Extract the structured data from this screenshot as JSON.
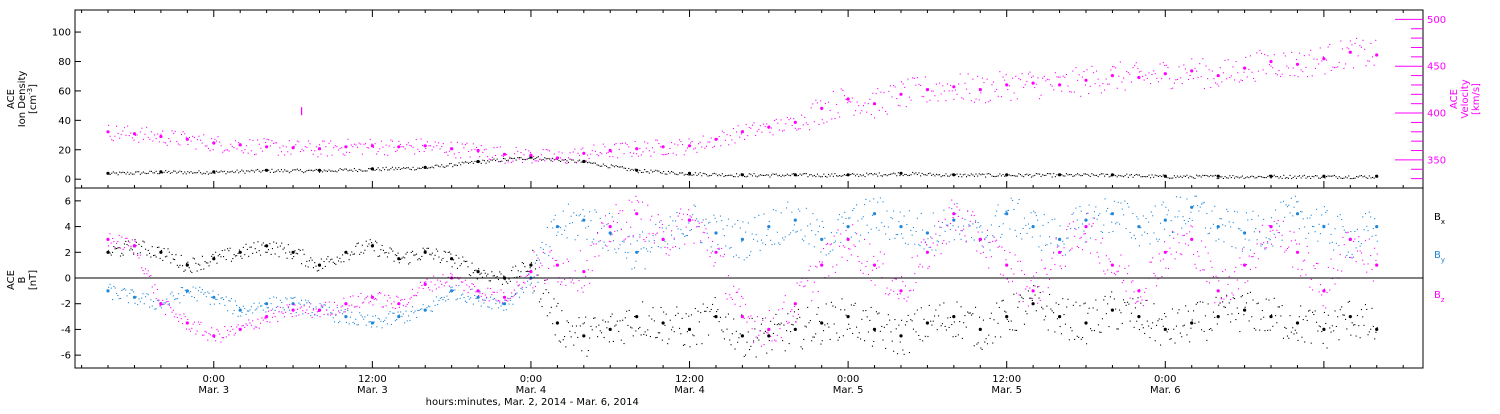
{
  "colors": {
    "black": "#000000",
    "magenta": "#ff00ff",
    "blue": "#1f86d8",
    "axis": "#000000",
    "background": "#ffffff"
  },
  "chart_data": [
    {
      "type": "scatter",
      "panel": "ion-density-velocity",
      "ylabel": [
        "ACE",
        "Ion Density",
        "[cm^-3]"
      ],
      "ylabel_right": [
        "ACE",
        "Velocity",
        "[km/s]"
      ],
      "ylim": [
        -6,
        115
      ],
      "yticks": [
        0,
        20,
        40,
        60,
        80,
        100
      ],
      "ytick_labels": [
        "0",
        "20",
        "40",
        "60",
        "80",
        "100"
      ],
      "ylim_right": [
        320,
        510
      ],
      "yticks_right": [
        350,
        400,
        450,
        500
      ],
      "ytick_labels_right": [
        "350",
        "400",
        "450",
        "500"
      ],
      "series": [
        {
          "axis": "left",
          "color": "black",
          "x": [
            -8,
            -4,
            0,
            4,
            8,
            12,
            16,
            20,
            24,
            28,
            32,
            36,
            40,
            44,
            48,
            52,
            56,
            60,
            64,
            68,
            72,
            76,
            80,
            84,
            88
          ],
          "y": [
            4,
            5,
            5,
            6,
            6,
            7,
            8,
            12,
            15,
            12,
            6,
            4,
            3,
            3,
            3,
            4,
            3,
            3,
            3,
            3,
            2,
            2,
            2,
            2,
            2
          ]
        },
        {
          "axis": "right",
          "color": "magenta",
          "x": [
            -8,
            -6,
            -4,
            -2,
            0,
            2,
            4,
            6,
            8,
            10,
            12,
            14,
            16,
            18,
            20,
            22,
            24,
            26,
            28,
            30,
            32,
            34,
            36,
            38,
            40,
            42,
            44,
            46,
            48,
            50,
            52,
            54,
            56,
            58,
            60,
            62,
            64,
            66,
            68,
            70,
            72,
            74,
            76,
            78,
            80,
            82,
            84,
            86,
            88
          ],
          "y": [
            380,
            378,
            375,
            372,
            368,
            366,
            364,
            363,
            362,
            364,
            365,
            364,
            365,
            362,
            360,
            356,
            355,
            352,
            357,
            360,
            362,
            364,
            365,
            372,
            380,
            385,
            390,
            405,
            415,
            410,
            420,
            425,
            428,
            425,
            430,
            432,
            430,
            435,
            440,
            438,
            442,
            445,
            440,
            448,
            455,
            452,
            458,
            465,
            462
          ]
        }
      ],
      "annotations": [
        {
          "x": 6.6,
          "y": 402,
          "axis": "right",
          "color": "magenta"
        }
      ]
    },
    {
      "type": "scatter",
      "panel": "magnetic-field",
      "ylabel": [
        "ACE",
        "B",
        "[nT]"
      ],
      "ylim": [
        -7,
        7
      ],
      "yticks": [
        -6,
        -4,
        -2,
        0,
        2,
        4,
        6
      ],
      "ytick_labels": [
        "-6",
        "-4",
        "-2",
        "0",
        "2",
        "4",
        "6"
      ],
      "zero_line": true,
      "legend": {
        "placement": "right",
        "entries": [
          {
            "label": "B",
            "sub": "x",
            "color": "black"
          },
          {
            "label": "B",
            "sub": "y",
            "color": "blue"
          },
          {
            "label": "B",
            "sub": "z",
            "color": "magenta"
          }
        ]
      },
      "series": [
        {
          "name": "Bx",
          "color": "black",
          "x": [
            -8,
            -6,
            -4,
            -2,
            0,
            2,
            4,
            6,
            8,
            10,
            12,
            14,
            16,
            18,
            20,
            22,
            24,
            26,
            28,
            30,
            32,
            34,
            36,
            38,
            40,
            42,
            44,
            46,
            48,
            50,
            52,
            54,
            56,
            58,
            60,
            62,
            64,
            66,
            68,
            70,
            72,
            74,
            76,
            78,
            80,
            82,
            84,
            86,
            88
          ],
          "y": [
            2,
            2.5,
            2,
            1,
            1.5,
            2,
            2.5,
            2,
            1,
            2,
            2.5,
            1.5,
            2,
            1.5,
            0.5,
            0,
            1,
            -3.5,
            -4.5,
            -4,
            -3,
            -3.5,
            -4,
            -3,
            -4.5,
            -4.5,
            -4,
            -3.5,
            -3,
            -4,
            -4.5,
            -3.5,
            -3,
            -4,
            -3,
            -2,
            -3,
            -3.5,
            -2.5,
            -3,
            -4,
            -3.5,
            -3,
            -2.5,
            -3,
            -3.5,
            -4,
            -3,
            -4
          ]
        },
        {
          "name": "By",
          "color": "blue",
          "x": [
            -8,
            -6,
            -4,
            -2,
            0,
            2,
            4,
            6,
            8,
            10,
            12,
            14,
            16,
            18,
            20,
            22,
            24,
            26,
            28,
            30,
            32,
            34,
            36,
            38,
            40,
            42,
            44,
            46,
            48,
            50,
            52,
            54,
            56,
            58,
            60,
            62,
            64,
            66,
            68,
            70,
            72,
            74,
            76,
            78,
            80,
            82,
            84,
            86,
            88
          ],
          "y": [
            -1,
            -1.5,
            -2,
            -1,
            -1.5,
            -2.5,
            -2,
            -2,
            -2.5,
            -3,
            -3.5,
            -3,
            -2.5,
            -1,
            -1.5,
            -2,
            0,
            4,
            4.5,
            3.5,
            2,
            3,
            4.5,
            3.5,
            3,
            4,
            4.5,
            3,
            4,
            5,
            4,
            3.5,
            4.5,
            3,
            5,
            4,
            3,
            4.5,
            5,
            4,
            4.5,
            5.5,
            4,
            3.5,
            4,
            5,
            4,
            3,
            4
          ]
        },
        {
          "name": "Bz",
          "color": "magenta",
          "x": [
            -8,
            -6,
            -4,
            -2,
            0,
            2,
            4,
            6,
            8,
            10,
            12,
            14,
            16,
            18,
            20,
            22,
            24,
            26,
            28,
            30,
            32,
            34,
            36,
            38,
            40,
            42,
            44,
            46,
            48,
            50,
            52,
            54,
            56,
            58,
            60,
            62,
            64,
            66,
            68,
            70,
            72,
            74,
            76,
            78,
            80,
            82,
            84,
            86,
            88
          ],
          "y": [
            3,
            2.5,
            -2,
            -3.5,
            -4.5,
            -4,
            -3,
            -2.5,
            -2.5,
            -2,
            -1.5,
            -2,
            -0.5,
            0,
            -1,
            -1.5,
            0.5,
            1,
            0.5,
            4,
            5,
            3,
            4.5,
            2,
            -3,
            -4,
            -2,
            1,
            3,
            1,
            -1,
            2,
            5,
            3,
            1,
            -1,
            2,
            4,
            1,
            -1,
            2,
            3,
            -1,
            1,
            4,
            2,
            -1,
            3,
            1
          ]
        }
      ]
    }
  ],
  "time_axis": {
    "xlim": [
      -10.5,
      91.5
    ],
    "label": "hours:minutes, Mar. 2, 2014 - Mar. 6, 2014",
    "ticks": [
      0,
      12,
      24,
      36,
      48,
      60,
      72,
      84,
      96
    ],
    "ticks_shown": [
      0,
      12,
      24,
      36,
      48,
      60,
      72,
      84,
      96
    ],
    "tick_time_labels": [
      "0:00",
      "12:00",
      "0:00",
      "12:00",
      "0:00",
      "12:00",
      "0:00"
    ],
    "tick_date_labels": [
      "Mar. 3",
      "Mar. 3",
      "Mar. 4",
      "Mar. 4",
      "Mar. 5",
      "Mar. 5",
      "Mar. 6"
    ],
    "labeled_ticks": [
      0,
      12,
      24,
      36,
      48,
      60,
      72
    ],
    "minor_tick_step": 2
  }
}
